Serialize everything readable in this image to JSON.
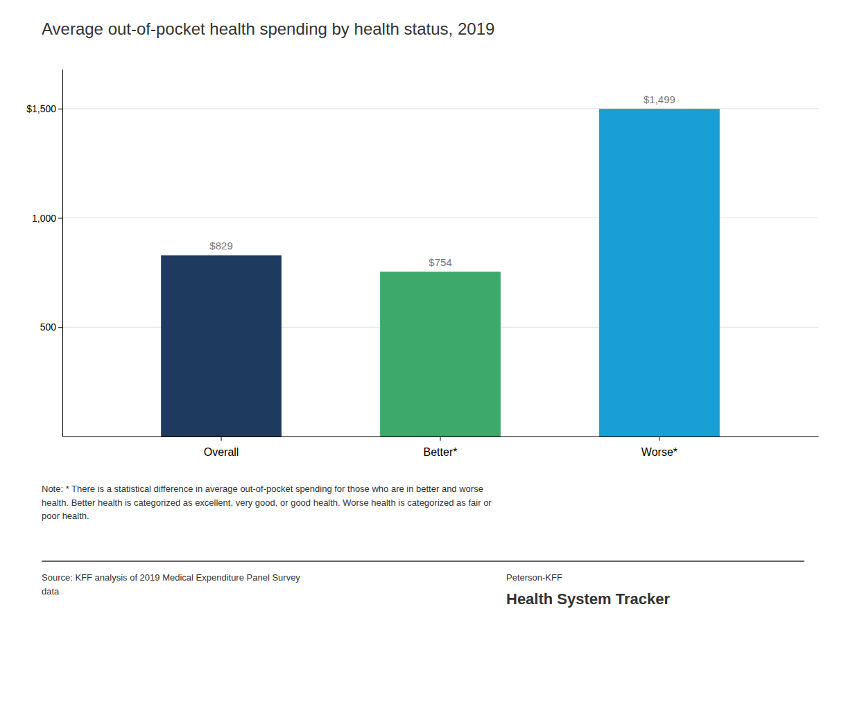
{
  "chart_data": {
    "type": "bar",
    "title": "Average out-of-pocket health spending by health status, 2019",
    "categories": [
      "Overall",
      "Better*",
      "Worse*"
    ],
    "values": [
      829,
      754,
      1499
    ],
    "value_labels": [
      "$829",
      "$754",
      "$1,499"
    ],
    "data_labels": true,
    "colors": [
      "#1e3a5f",
      "#3daa6b",
      "#1a9fd4"
    ],
    "ylim": [
      0,
      1680
    ],
    "yticks": [
      500,
      {
        "value": 1000,
        "label": "1,000"
      },
      {
        "value": 1500,
        "label": "$1,500"
      }
    ],
    "grid": true,
    "annotations": [
      "Note: * There is a statistical difference in average out-of-pocket spending for those who are in better and worse\nhealth. Better health is categorized as excellent, very good, or good health. Worse health is categorized as fair or\npoor health.",
      "Source: KFF analysis of 2019 Medical Expenditure Panel Survey\ndata",
      "Peterson-KFF",
      "Health System Tracker"
    ]
  }
}
